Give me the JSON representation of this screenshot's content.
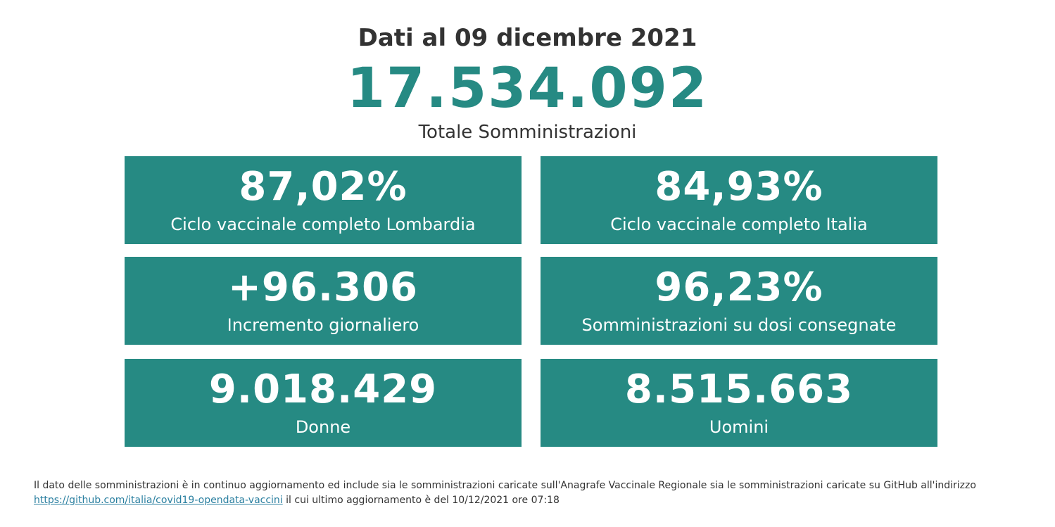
{
  "header": {
    "date_title": "Dati al 09 dicembre 2021",
    "total_value": "17.534.092",
    "total_label": "Totale Somministrazioni"
  },
  "cards": [
    {
      "value": "87,02%",
      "label": "Ciclo vaccinale completo Lombardia"
    },
    {
      "value": "84,93%",
      "label": "Ciclo vaccinale completo Italia"
    },
    {
      "value": "+96.306",
      "label": "Incremento giornaliero"
    },
    {
      "value": "96,23%",
      "label": "Somministrazioni su dosi consegnate"
    },
    {
      "value": "9.018.429",
      "label": "Donne"
    },
    {
      "value": "8.515.663",
      "label": "Uomini"
    }
  ],
  "footer": {
    "text_before_link": "Il dato delle somministrazioni è in continuo aggiornamento ed include sia le somministrazioni caricate sull'Anagrafe Vaccinale Regionale sia le somministrazioni caricate su GitHub all'indirizzo",
    "link_text": "https://github.com/italia/covid19-opendata-vaccini",
    "text_after_link": "il cui ultimo aggiornamento è del 10/12/2021 ore 07:18"
  },
  "colors": {
    "accent": "#268a83",
    "text": "#333333",
    "link": "#2a7fa0"
  }
}
